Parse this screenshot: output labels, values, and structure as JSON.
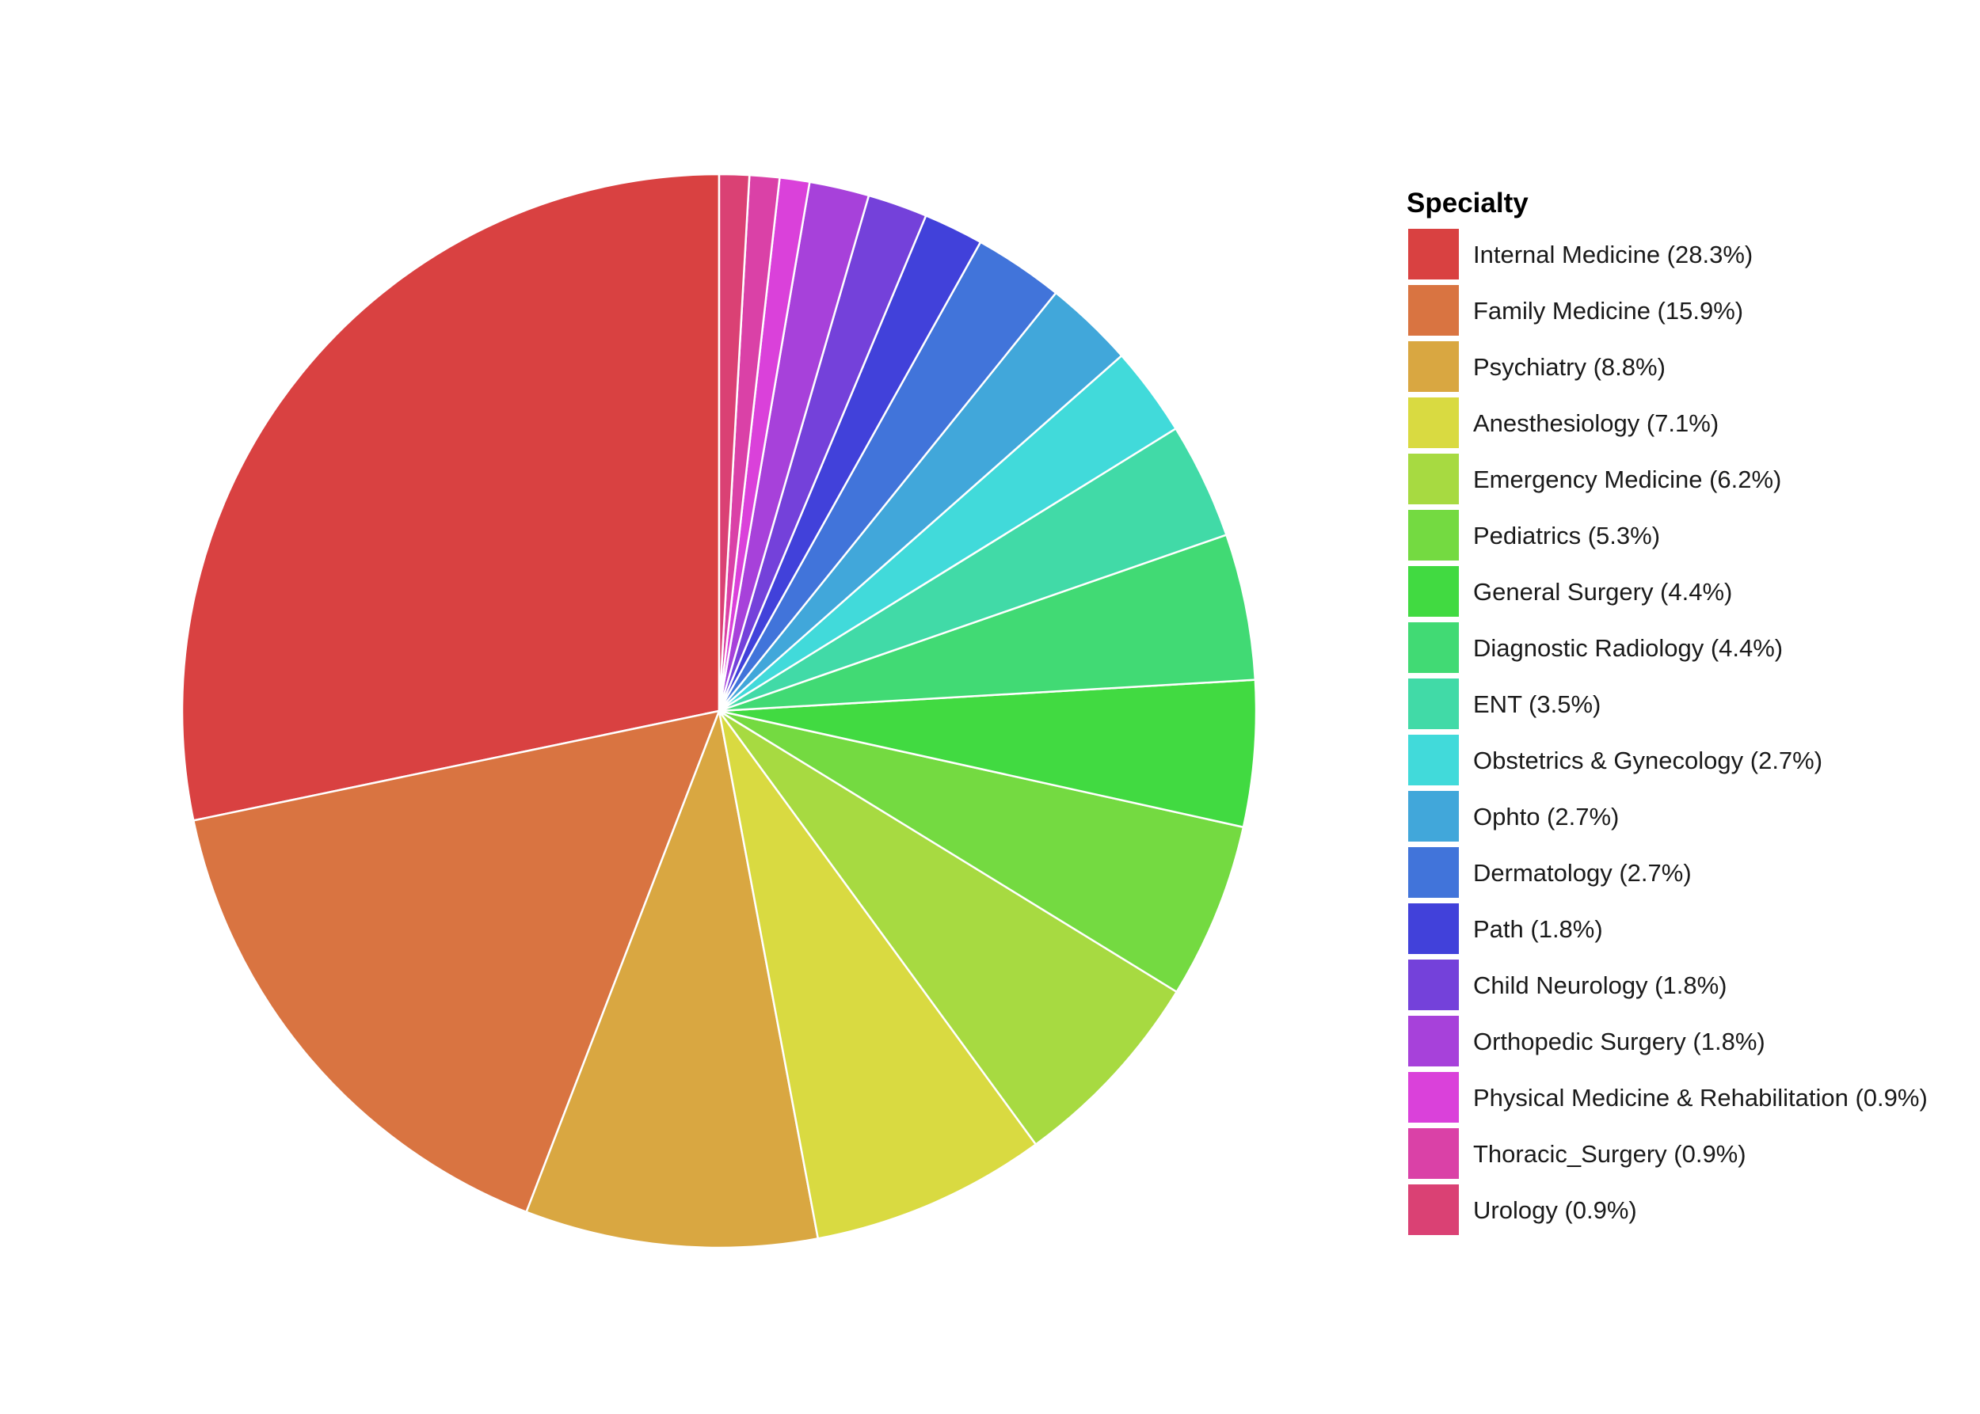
{
  "chart_data": {
    "type": "pie",
    "title": "",
    "legend_title": "Specialty",
    "legend_position": "right",
    "start_angle": "12 o'clock",
    "direction": "counter-clockwise",
    "slices": [
      {
        "label": "Internal Medicine (28.3%)",
        "category": "Internal Medicine",
        "value": 28.3,
        "color": "#D94141"
      },
      {
        "label": "Family Medicine (15.9%)",
        "category": "Family Medicine",
        "value": 15.9,
        "color": "#D97441"
      },
      {
        "label": "Psychiatry (8.8%)",
        "category": "Psychiatry",
        "value": 8.8,
        "color": "#D9A741"
      },
      {
        "label": "Anesthesiology (7.1%)",
        "category": "Anesthesiology",
        "value": 7.1,
        "color": "#D9DA41"
      },
      {
        "label": "Emergency Medicine (6.2%)",
        "category": "Emergency Medicine",
        "value": 6.2,
        "color": "#A7DA41"
      },
      {
        "label": "Pediatrics (5.3%)",
        "category": "Pediatrics",
        "value": 5.3,
        "color": "#74DA41"
      },
      {
        "label": "General Surgery (4.4%)",
        "category": "General Surgery",
        "value": 4.4,
        "color": "#41DA41"
      },
      {
        "label": "Diagnostic Radiology (4.4%)",
        "category": "Diagnostic Radiology",
        "value": 4.4,
        "color": "#41DA74"
      },
      {
        "label": "ENT (3.5%)",
        "category": "ENT",
        "value": 3.5,
        "color": "#41DAA7"
      },
      {
        "label": "Obstetrics & Gynecology (2.7%)",
        "category": "Obstetrics & Gynecology",
        "value": 2.7,
        "color": "#41DADA"
      },
      {
        "label": "Ophto (2.7%)",
        "category": "Ophto",
        "value": 2.7,
        "color": "#41A7DA"
      },
      {
        "label": "Dermatology (2.7%)",
        "category": "Dermatology",
        "value": 2.7,
        "color": "#4174DA"
      },
      {
        "label": "Path (1.8%)",
        "category": "Path",
        "value": 1.8,
        "color": "#4141DA"
      },
      {
        "label": "Child Neurology (1.8%)",
        "category": "Child Neurology",
        "value": 1.8,
        "color": "#7441DA"
      },
      {
        "label": "Orthopedic Surgery (1.8%)",
        "category": "Orthopedic Surgery",
        "value": 1.8,
        "color": "#A741DA"
      },
      {
        "label": "Physical Medicine & Rehabilitation (0.9%)",
        "category": "Physical Medicine & Rehabilitation",
        "value": 0.9,
        "color": "#DA41DA"
      },
      {
        "label": "Thoracic_Surgery (0.9%)",
        "category": "Thoracic_Surgery",
        "value": 0.9,
        "color": "#DA41A7"
      },
      {
        "label": "Urology (0.9%)",
        "category": "Urology",
        "value": 0.9,
        "color": "#DA4174"
      }
    ]
  }
}
